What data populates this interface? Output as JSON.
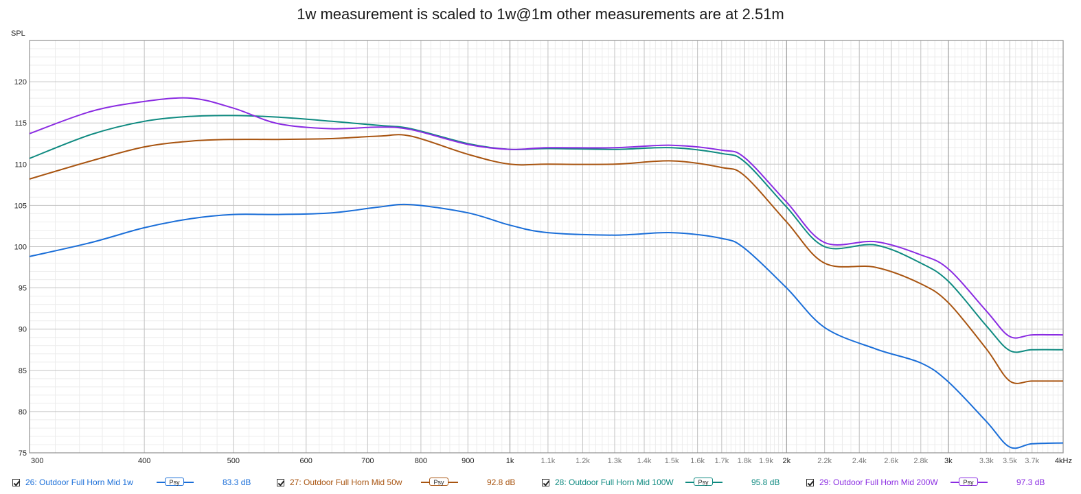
{
  "chart_data": {
    "type": "line",
    "title": "1w measurement is scaled to 1w@1m other measurements are at 2.51m",
    "ylabel": "SPL",
    "xlabel": "",
    "x_scale": "log",
    "xlim": [
      300,
      4000
    ],
    "ylim": [
      75,
      125
    ],
    "grid": true,
    "y_ticks": [
      75,
      80,
      85,
      90,
      95,
      100,
      105,
      110,
      115,
      120
    ],
    "x_ticks": [
      {
        "value": 300,
        "label": "300"
      },
      {
        "value": 400,
        "label": "400"
      },
      {
        "value": 500,
        "label": "500"
      },
      {
        "value": 600,
        "label": "600"
      },
      {
        "value": 700,
        "label": "700"
      },
      {
        "value": 800,
        "label": "800"
      },
      {
        "value": 900,
        "label": "900"
      },
      {
        "value": 1000,
        "label": "1k"
      },
      {
        "value": 1100,
        "label": "1.1k"
      },
      {
        "value": 1200,
        "label": "1.2k"
      },
      {
        "value": 1300,
        "label": "1.3k"
      },
      {
        "value": 1400,
        "label": "1.4k"
      },
      {
        "value": 1500,
        "label": "1.5k"
      },
      {
        "value": 1600,
        "label": "1.6k"
      },
      {
        "value": 1700,
        "label": "1.7k"
      },
      {
        "value": 1800,
        "label": "1.8k"
      },
      {
        "value": 1900,
        "label": "1.9k"
      },
      {
        "value": 2000,
        "label": "2k"
      },
      {
        "value": 2200,
        "label": "2.2k"
      },
      {
        "value": 2400,
        "label": "2.4k"
      },
      {
        "value": 2600,
        "label": "2.6k"
      },
      {
        "value": 2800,
        "label": "2.8k"
      },
      {
        "value": 3000,
        "label": "3k"
      },
      {
        "value": 3300,
        "label": "3.3k"
      },
      {
        "value": 3500,
        "label": "3.5k"
      },
      {
        "value": 3700,
        "label": "3.7k"
      },
      {
        "value": 4000,
        "label": "4kHz"
      }
    ],
    "x": [
      300,
      350,
      400,
      450,
      500,
      560,
      640,
      720,
      780,
      900,
      1000,
      1100,
      1300,
      1500,
      1700,
      1800,
      2000,
      2200,
      2500,
      2800,
      3000,
      3300,
      3500,
      3700,
      4000
    ],
    "series": [
      {
        "name": "26: Outdoor Full Horn Mid 1w",
        "color": "#1a6ed8",
        "values": [
          98.8,
          100.5,
          102.3,
          103.4,
          103.9,
          103.9,
          104.1,
          104.8,
          105.1,
          104.1,
          102.6,
          101.7,
          101.4,
          101.7,
          101.0,
          99.8,
          95.0,
          90.2,
          87.6,
          85.9,
          83.6,
          78.8,
          75.7,
          76.1,
          76.2
        ]
      },
      {
        "name": "27: Outdoor Full Horn Mid 50w",
        "color": "#a85410",
        "values": [
          108.2,
          110.4,
          112.1,
          112.8,
          113.0,
          113.0,
          113.1,
          113.4,
          113.4,
          111.2,
          110.0,
          110.0,
          110.0,
          110.4,
          109.6,
          108.6,
          103.0,
          98.0,
          97.5,
          95.5,
          93.2,
          87.6,
          83.7,
          83.7,
          83.7
        ]
      },
      {
        "name": "28: Outdoor Full Horn Mid 100W",
        "color": "#0e8a80",
        "values": [
          110.7,
          113.6,
          115.2,
          115.8,
          115.9,
          115.7,
          115.2,
          114.7,
          114.3,
          112.5,
          111.8,
          111.9,
          111.8,
          112.0,
          111.3,
          110.3,
          104.8,
          100.0,
          100.2,
          98.0,
          95.8,
          90.4,
          87.4,
          87.5,
          87.5
        ]
      },
      {
        "name": "29: Outdoor Full Horn Mid 200W",
        "color": "#8a2be2",
        "values": [
          113.7,
          116.4,
          117.6,
          118.0,
          116.8,
          114.9,
          114.3,
          114.5,
          114.2,
          112.4,
          111.8,
          112.0,
          112.0,
          112.3,
          111.7,
          110.8,
          105.4,
          100.5,
          100.6,
          99.0,
          97.3,
          92.2,
          89.1,
          89.3,
          89.3
        ]
      }
    ]
  },
  "legend": [
    {
      "label": "26: Outdoor Full Horn Mid 1w",
      "badge": "Psy",
      "value": "83.3 dB",
      "color": "#1a6ed8"
    },
    {
      "label": "27: Outdoor Full Horn Mid 50w",
      "badge": "Psy",
      "value": "92.8 dB",
      "color": "#a85410"
    },
    {
      "label": "28: Outdoor Full Horn Mid 100W",
      "badge": "Psy",
      "value": "95.8 dB",
      "color": "#0e8a80"
    },
    {
      "label": "29: Outdoor Full Horn Mid 200W",
      "badge": "Psy",
      "value": "97.3 dB",
      "color": "#8a2be2"
    }
  ]
}
